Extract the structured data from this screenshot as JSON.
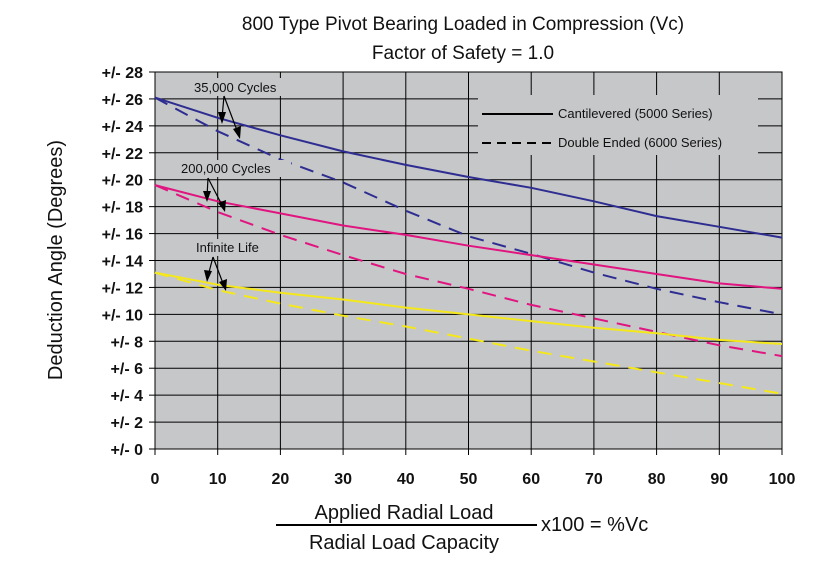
{
  "chart_data": {
    "type": "line",
    "title": "800 Type Pivot Bearing Loaded in Compression (Vc)",
    "subtitle": "Factor of Safety = 1.0",
    "ylabel": "Deduction Angle (Degrees)",
    "xlabel_numerator": "Applied Radial Load",
    "xlabel_denominator": "Radial Load Capacity",
    "xlabel_suffix": "x100 = %Vc",
    "xlim": [
      0,
      100
    ],
    "ylim": [
      0,
      28
    ],
    "x_ticks": [
      0,
      10,
      20,
      30,
      40,
      50,
      60,
      70,
      80,
      90,
      100
    ],
    "x_tick_labels": [
      "0",
      "10",
      "20",
      "30",
      "40",
      "50",
      "60",
      "70",
      "80",
      "90",
      "100"
    ],
    "y_ticks": [
      0,
      2,
      4,
      6,
      8,
      10,
      12,
      14,
      16,
      18,
      20,
      22,
      24,
      26,
      28
    ],
    "y_tick_labels": [
      "+/- 0",
      "+/- 2",
      "+/- 4",
      "+/- 6",
      "+/- 8",
      "+/- 10",
      "+/- 12",
      "+/- 14",
      "+/- 16",
      "+/- 18",
      "+/- 20",
      "+/- 22",
      "+/- 24",
      "+/- 26",
      "+/- 28"
    ],
    "grid": true,
    "legend_position": "top-right",
    "legend": [
      {
        "label": "Cantilevered (5000 Series)",
        "style": "solid"
      },
      {
        "label": "Double Ended (6000 Series)",
        "style": "dashed"
      }
    ],
    "annotations": [
      {
        "text": "35,000 Cycles"
      },
      {
        "text": "200,000 Cycles"
      },
      {
        "text": "Infinite Life"
      }
    ],
    "series": [
      {
        "group": "35,000 Cycles",
        "style": "solid",
        "color": "#2e2d91",
        "x": [
          0,
          10,
          20,
          30,
          40,
          50,
          60,
          70,
          80,
          90,
          100
        ],
        "y": [
          26.1,
          24.6,
          23.3,
          22.1,
          21.1,
          20.2,
          19.4,
          18.4,
          17.3,
          16.5,
          15.7
        ]
      },
      {
        "group": "35,000 Cycles",
        "style": "dashed",
        "color": "#2e2d91",
        "x": [
          0,
          10,
          20,
          30,
          40,
          50,
          60,
          70,
          80,
          90,
          100
        ],
        "y": [
          26.1,
          23.6,
          21.5,
          19.8,
          17.7,
          15.8,
          14.5,
          13.1,
          11.9,
          10.9,
          10.0
        ]
      },
      {
        "group": "200,000 Cycles",
        "style": "solid",
        "color": "#e0157f",
        "x": [
          0,
          10,
          20,
          30,
          40,
          50,
          60,
          70,
          80,
          90,
          100
        ],
        "y": [
          19.6,
          18.4,
          17.5,
          16.6,
          15.9,
          15.1,
          14.4,
          13.7,
          13.0,
          12.3,
          11.9
        ]
      },
      {
        "group": "200,000 Cycles",
        "style": "dashed",
        "color": "#e0157f",
        "x": [
          0,
          10,
          20,
          30,
          40,
          50,
          60,
          70,
          80,
          90,
          100
        ],
        "y": [
          19.6,
          17.6,
          15.9,
          14.4,
          13.0,
          11.9,
          10.7,
          9.7,
          8.7,
          7.7,
          6.9
        ]
      },
      {
        "group": "Infinite Life",
        "style": "solid",
        "color": "#f4e81a",
        "x": [
          0,
          10,
          20,
          30,
          40,
          50,
          60,
          70,
          80,
          90,
          100
        ],
        "y": [
          13.1,
          12.2,
          11.6,
          11.1,
          10.5,
          10.0,
          9.5,
          9.0,
          8.6,
          8.1,
          7.8
        ]
      },
      {
        "group": "Infinite Life",
        "style": "dashed",
        "color": "#f4e81a",
        "x": [
          0,
          10,
          20,
          30,
          40,
          50,
          60,
          70,
          80,
          90,
          100
        ],
        "y": [
          13.1,
          11.8,
          10.8,
          9.9,
          9.1,
          8.2,
          7.3,
          6.5,
          5.7,
          4.9,
          4.1
        ]
      }
    ],
    "plot_background": "#c6c7c9",
    "grid_color": "#000000"
  }
}
